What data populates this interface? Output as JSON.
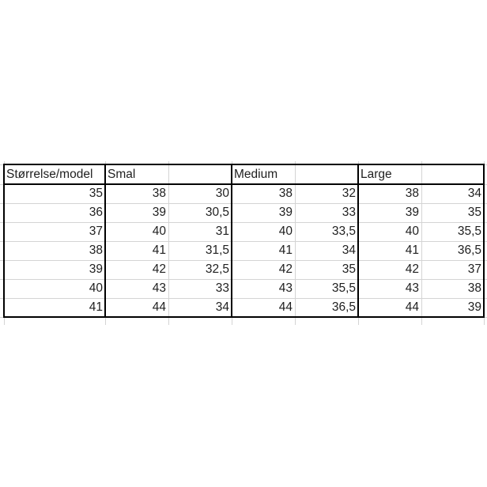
{
  "table": {
    "header": [
      "Størrelse/model",
      "Smal",
      "",
      "Medium",
      "",
      "Large",
      ""
    ],
    "rows": [
      [
        "35",
        "38",
        "30",
        "38",
        "32",
        "38",
        "34"
      ],
      [
        "36",
        "39",
        "30,5",
        "39",
        "33",
        "39",
        "35"
      ],
      [
        "37",
        "40",
        "31",
        "40",
        "33,5",
        "40",
        "35,5"
      ],
      [
        "38",
        "41",
        "31,5",
        "41",
        "34",
        "41",
        "36,5"
      ],
      [
        "39",
        "42",
        "32,5",
        "42",
        "35",
        "42",
        "37"
      ],
      [
        "40",
        "43",
        "33",
        "43",
        "35,5",
        "43",
        "38"
      ],
      [
        "41",
        "44",
        "34",
        "44",
        "36,5",
        "44",
        "39"
      ]
    ]
  },
  "colors": {
    "border": "#000000",
    "gridline": "#d4d4d4",
    "text": "#1f1f1f"
  }
}
